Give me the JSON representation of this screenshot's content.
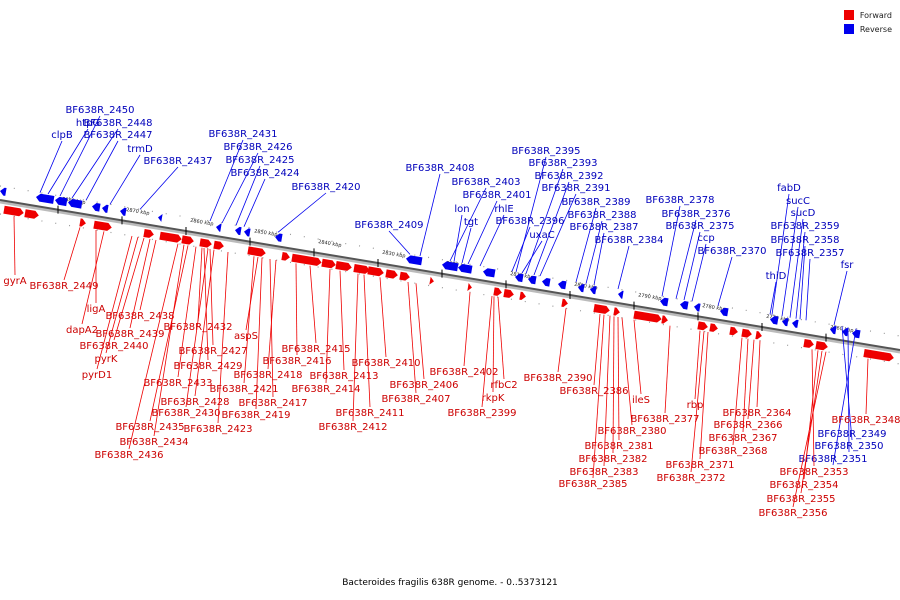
{
  "legend": [
    {
      "label": "Forward",
      "color": "#ee0000"
    },
    {
      "label": "Reverse",
      "color": "#0000ee"
    }
  ],
  "footer": "Bacteroides fragilis 638R genome. - 0..5373121",
  "colors": {
    "forward": "#ee0000",
    "reverse": "#0000ee",
    "axis": "#777777",
    "text_forward": "#cc0000",
    "text_reverse": "#0000bb"
  },
  "scale": {
    "start_kbp": 2890,
    "end_kbp": 2750,
    "tick_labels": [
      "2880 kbp",
      "2870 kbp",
      "2860 kbp",
      "2850 kbp",
      "2840 kbp",
      "2830 kbp",
      "2820 kbp",
      "2810 kbp",
      "2800 kbp",
      "2790 kbp",
      "2780 kbp",
      "2770 kbp",
      "2760 kbp"
    ]
  },
  "reverse_genes": [
    "htpG",
    "BF638R_2450",
    "clpB",
    "BF638R_2448",
    "BF638R_2447",
    "trmD",
    "BF638R_2437",
    "BF638R_2431",
    "BF638R_2426",
    "BF638R_2425",
    "BF638R_2424",
    "BF638R_2420",
    "BF638R_2409",
    "BF638R_2408",
    "BF638R_2403",
    "BF638R_2401",
    "lon",
    "tgt",
    "rhlE",
    "BF638R_2395",
    "BF638R_2393",
    "BF638R_2392",
    "BF638R_2391",
    "BF638R_2396",
    "uxaC",
    "BF638R_2389",
    "BF638R_2388",
    "BF638R_2387",
    "BF638R_2384",
    "BF638R_2378",
    "BF638R_2376",
    "BF638R_2375",
    "ccp",
    "BF638R_2370",
    "fabD",
    "sucC",
    "sucD",
    "BF638R_2359",
    "BF638R_2358",
    "BF638R_2357",
    "thiD",
    "fsr",
    "BF638R_2349",
    "BF638R_2350",
    "BF638R_2351"
  ],
  "forward_genes": [
    "gyrA",
    "BF638R_2449",
    "ligA",
    "dapA2",
    "BF638R_2438",
    "BF638R_2439",
    "BF638R_2440",
    "pyrK",
    "pyrD1",
    "BF638R_2432",
    "aspS",
    "BF638R_2427",
    "BF638R_2429",
    "BF638R_2433",
    "BF638R_2428",
    "BF638R_2430",
    "BF638R_2435",
    "BF638R_2434",
    "BF638R_2436",
    "BF638R_2423",
    "BF638R_2419",
    "BF638R_2417",
    "BF638R_2421",
    "BF638R_2418",
    "BF638R_2416",
    "BF638R_2415",
    "BF638R_2414",
    "BF638R_2413",
    "BF638R_2411",
    "BF638R_2412",
    "BF638R_2410",
    "BF638R_2406",
    "BF638R_2407",
    "BF638R_2402",
    "rfbC2",
    "rkpK",
    "BF638R_2399",
    "BF638R_2390",
    "BF638R_2386",
    "ileS",
    "BF638R_2380",
    "BF638R_2381",
    "BF638R_2382",
    "BF638R_2383",
    "BF638R_2385",
    "BF638R_2377",
    "rbp",
    "BF638R_2371",
    "BF638R_2372",
    "BF638R_2364",
    "BF638R_2366",
    "BF638R_2367",
    "BF638R_2368",
    "BF638R_2353",
    "BF638R_2354",
    "BF638R_2355",
    "BF638R_2356",
    "BF638R_2348"
  ]
}
